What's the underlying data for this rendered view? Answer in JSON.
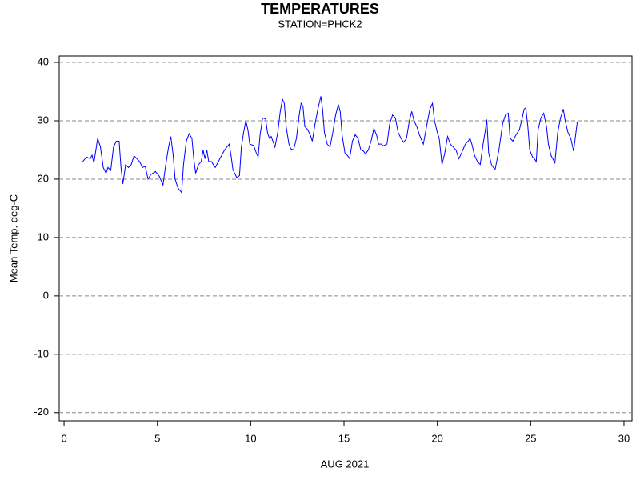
{
  "chart_data": {
    "type": "line",
    "title": "TEMPERATURES",
    "subtitle": "STATION=PHCK2",
    "xlabel": "AUG 2021",
    "ylabel": "Mean Temp. deg-C",
    "xlim": [
      -0.26,
      30.43
    ],
    "xticks": [
      0,
      5,
      10,
      15,
      20,
      25,
      30
    ],
    "ylim": [
      -21.4,
      41.1
    ],
    "yticks": [
      -20,
      -10,
      0,
      10,
      20,
      30,
      40
    ],
    "grid": true,
    "x": [
      1.0,
      1.2,
      1.4,
      1.5,
      1.6,
      1.8,
      1.95,
      2.1,
      2.25,
      2.35,
      2.5,
      2.65,
      2.8,
      2.95,
      3.05,
      3.15,
      3.3,
      3.45,
      3.6,
      3.75,
      3.9,
      4.05,
      4.2,
      4.35,
      4.5,
      4.65,
      4.9,
      5.1,
      5.3,
      5.45,
      5.6,
      5.72,
      5.85,
      5.95,
      6.1,
      6.3,
      6.4,
      6.55,
      6.7,
      6.85,
      6.95,
      7.05,
      7.2,
      7.35,
      7.45,
      7.55,
      7.65,
      7.75,
      7.9,
      8.1,
      8.35,
      8.6,
      8.85,
      8.95,
      9.05,
      9.25,
      9.4,
      9.5,
      9.62,
      9.74,
      9.85,
      9.95,
      10.15,
      10.3,
      10.4,
      10.5,
      10.64,
      10.8,
      10.9,
      11.0,
      11.1,
      11.3,
      11.45,
      11.58,
      11.7,
      11.8,
      11.9,
      12.05,
      12.15,
      12.3,
      12.45,
      12.6,
      12.7,
      12.8,
      12.9,
      13.05,
      13.2,
      13.3,
      13.45,
      13.6,
      13.76,
      13.85,
      13.95,
      14.1,
      14.25,
      14.4,
      14.55,
      14.7,
      14.8,
      14.9,
      15.05,
      15.2,
      15.3,
      15.45,
      15.6,
      15.75,
      15.9,
      16.05,
      16.15,
      16.3,
      16.45,
      16.6,
      16.75,
      16.85,
      17.0,
      17.1,
      17.3,
      17.45,
      17.6,
      17.75,
      17.9,
      18.05,
      18.2,
      18.35,
      18.5,
      18.63,
      18.75,
      18.9,
      19.05,
      19.25,
      19.45,
      19.6,
      19.74,
      19.85,
      20.0,
      20.1,
      20.25,
      20.4,
      20.55,
      20.7,
      20.85,
      21.0,
      21.15,
      21.3,
      21.5,
      21.65,
      21.75,
      21.85,
      22.0,
      22.15,
      22.3,
      22.45,
      22.58,
      22.65,
      22.75,
      22.9,
      23.0,
      23.1,
      23.3,
      23.5,
      23.65,
      23.8,
      23.9,
      24.05,
      24.2,
      24.4,
      24.55,
      24.65,
      24.74,
      24.85,
      24.95,
      25.1,
      25.2,
      25.3,
      25.4,
      25.55,
      25.7,
      25.85,
      25.95,
      26.1,
      26.3,
      26.45,
      26.6,
      26.75,
      26.85,
      27.0,
      27.15,
      27.3,
      27.5
    ],
    "series": [
      {
        "name": "Mean Temp.",
        "color": "#0000ff",
        "values": [
          23.0,
          23.8,
          23.5,
          24.1,
          22.8,
          27.0,
          25.5,
          22.0,
          21.0,
          22.0,
          21.5,
          25.5,
          26.5,
          26.5,
          22.0,
          19.2,
          22.5,
          22.0,
          22.5,
          24.0,
          23.5,
          23.0,
          22.0,
          22.2,
          20.0,
          20.8,
          21.3,
          20.5,
          19.0,
          22.5,
          25.5,
          27.3,
          24.0,
          20.0,
          18.5,
          17.7,
          22.5,
          26.5,
          27.8,
          27.0,
          23.5,
          21.0,
          22.5,
          23.0,
          25.0,
          23.5,
          25.0,
          23.0,
          23.0,
          22.0,
          23.5,
          25.0,
          26.0,
          24.0,
          21.6,
          20.3,
          20.6,
          25.5,
          28.0,
          30.0,
          28.5,
          26.0,
          25.8,
          24.5,
          23.8,
          27.5,
          30.5,
          30.3,
          28.0,
          27.0,
          27.3,
          25.5,
          28.0,
          31.5,
          33.7,
          33.0,
          29.0,
          26.0,
          25.2,
          25.0,
          27.0,
          31.0,
          33.0,
          32.5,
          29.0,
          28.5,
          27.5,
          26.5,
          29.5,
          32.0,
          34.2,
          32.0,
          28.0,
          26.0,
          25.5,
          28.0,
          31.0,
          32.8,
          31.5,
          27.5,
          24.5,
          24.0,
          23.5,
          26.5,
          27.6,
          27.0,
          25.0,
          24.8,
          24.3,
          25.0,
          26.5,
          28.7,
          27.5,
          26.0,
          26.0,
          25.7,
          26.0,
          29.5,
          31.0,
          30.5,
          28.0,
          27.0,
          26.3,
          27.0,
          30.0,
          31.6,
          30.0,
          29.0,
          27.5,
          26.0,
          29.5,
          32.0,
          33.0,
          30.0,
          28.0,
          27.0,
          22.5,
          24.5,
          27.3,
          26.0,
          25.5,
          25.0,
          23.5,
          24.5,
          26.0,
          26.5,
          27.0,
          26.0,
          24.0,
          23.0,
          22.5,
          26.0,
          28.5,
          30.2,
          24.5,
          22.5,
          22.0,
          21.7,
          25.0,
          29.5,
          31.0,
          31.3,
          27.0,
          26.5,
          27.5,
          28.5,
          30.5,
          32.0,
          32.2,
          29.0,
          25.0,
          23.8,
          23.5,
          23.0,
          28.5,
          30.5,
          31.3,
          29.0,
          26.0,
          24.0,
          22.8,
          28.0,
          30.5,
          32.0,
          30.0,
          28.0,
          27.0,
          24.8,
          29.8
        ]
      }
    ]
  }
}
